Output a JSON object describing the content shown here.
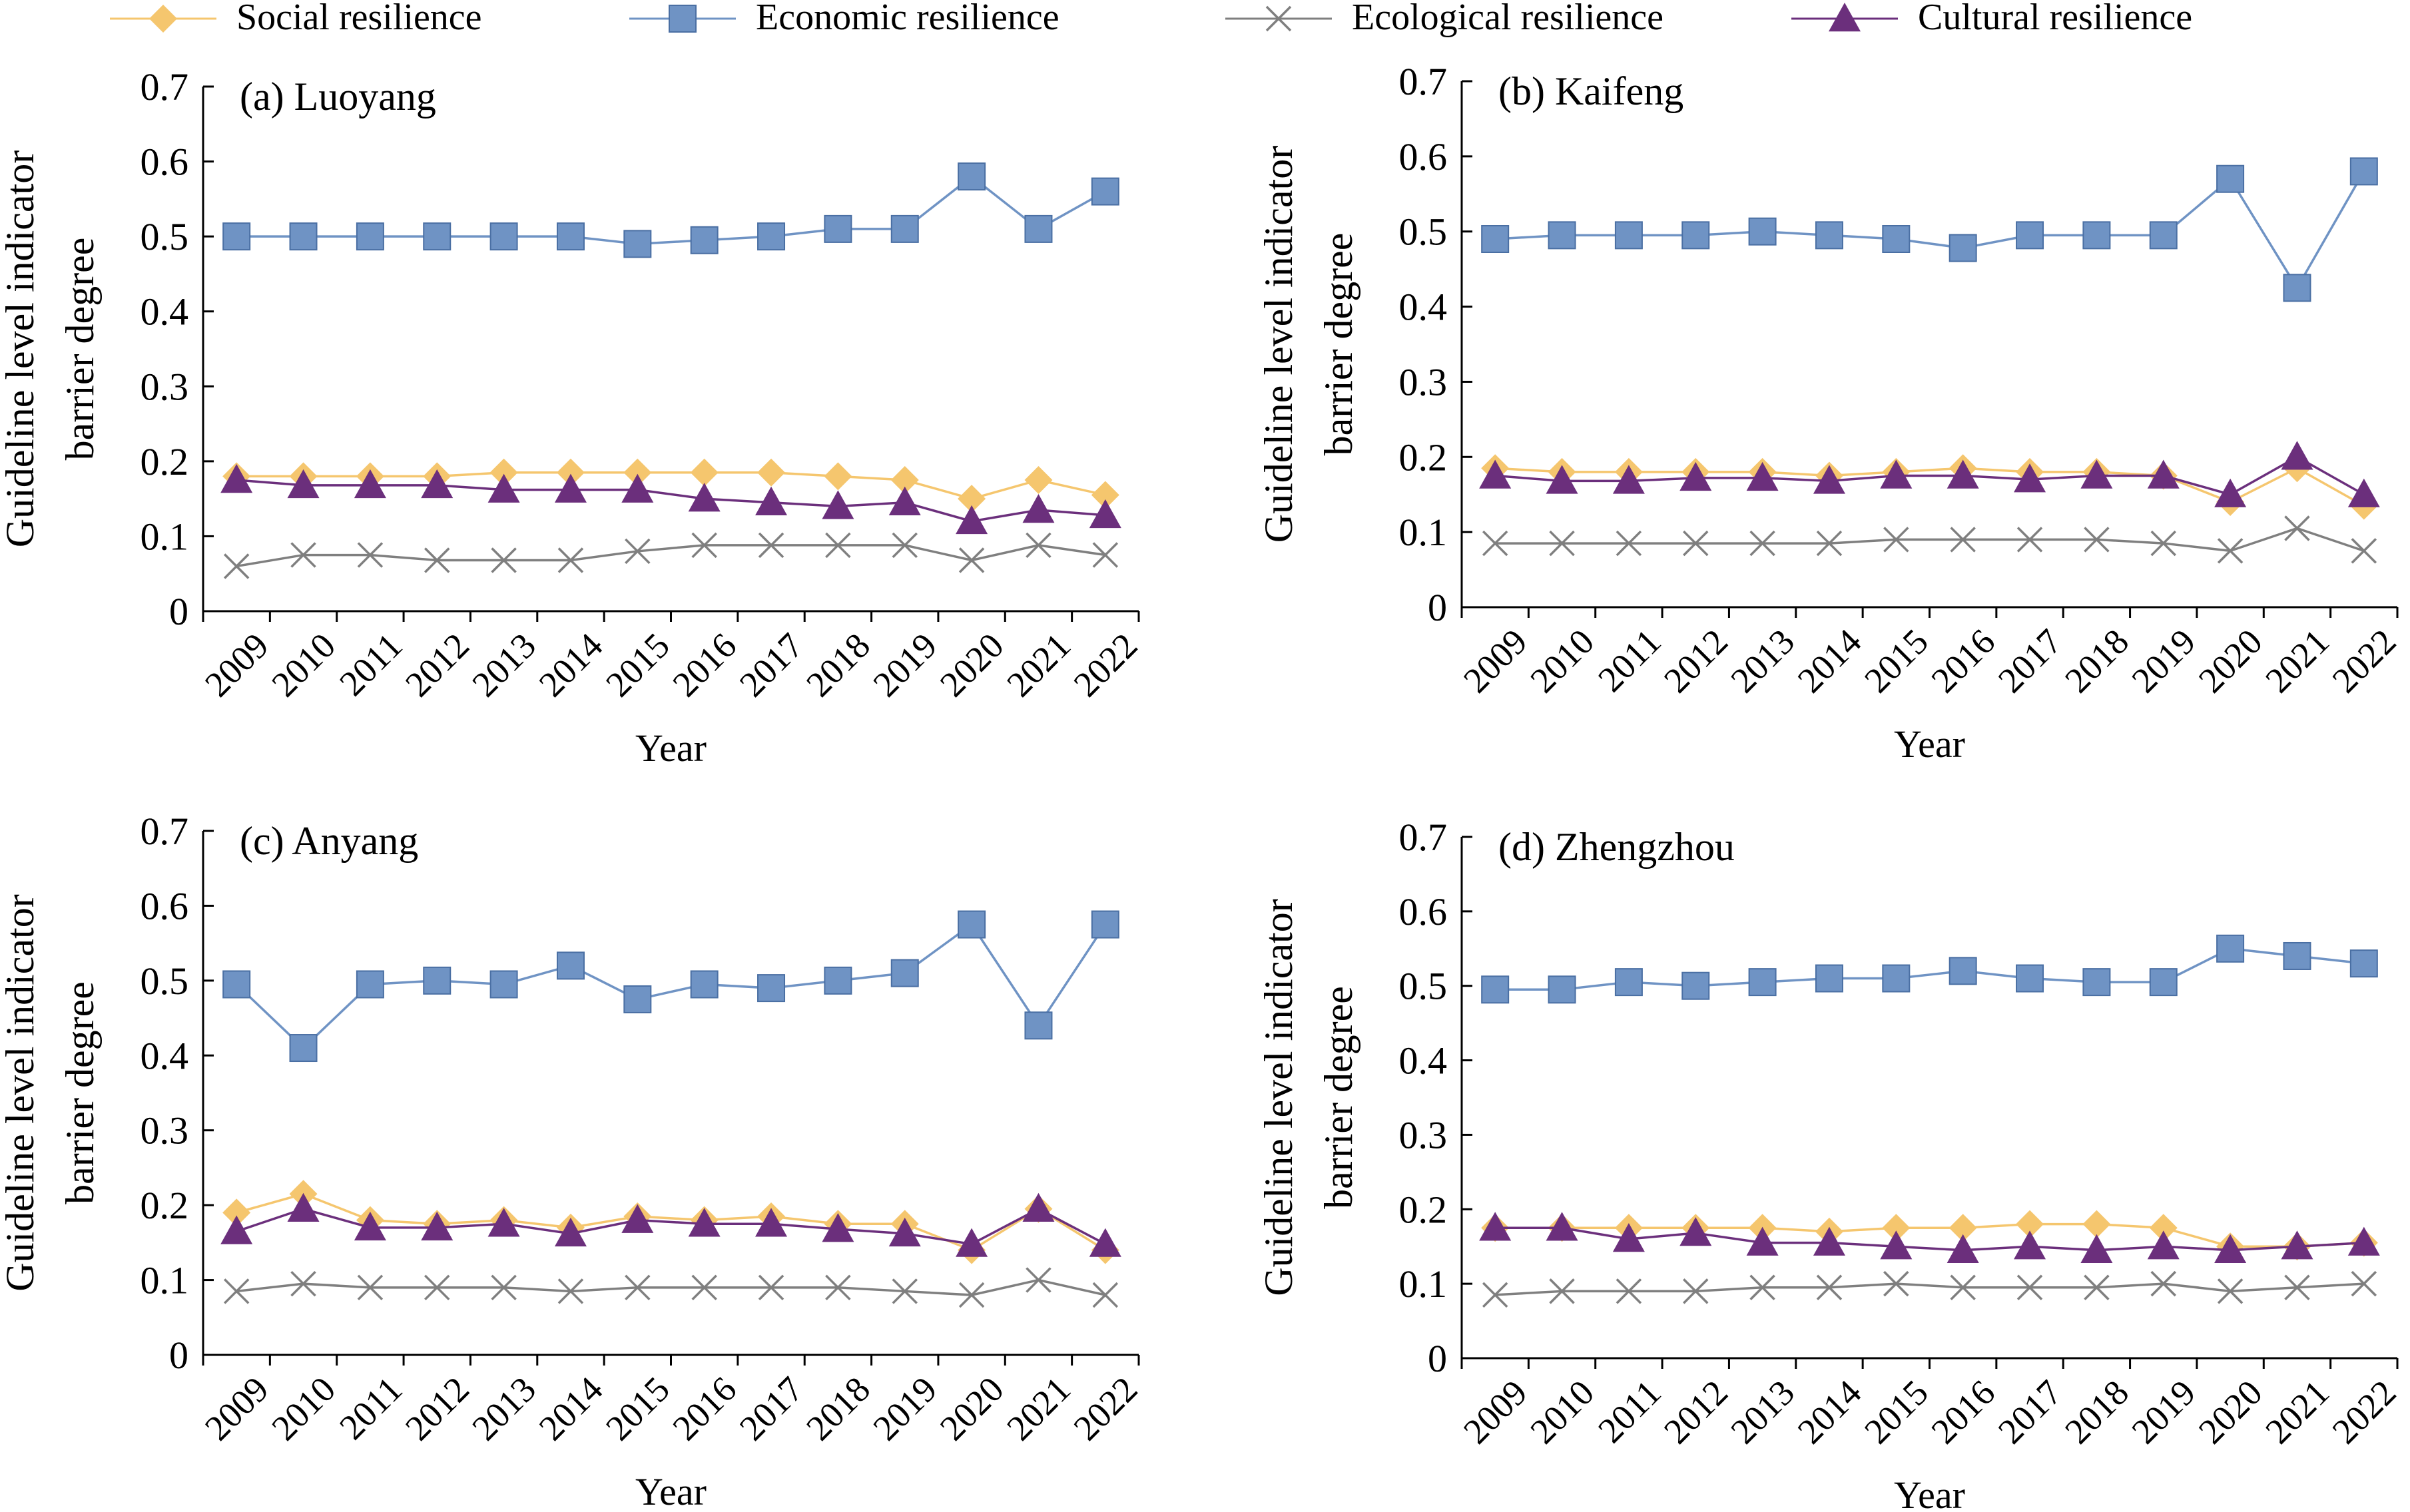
{
  "legend": {
    "items": [
      {
        "label": "Social resilience",
        "marker": "diamond",
        "color": "#F5C66E"
      },
      {
        "label": "Economic resilience",
        "marker": "square",
        "color": "#6F93C4"
      },
      {
        "label": "Ecological resilience",
        "marker": "x",
        "color": "#7F7F7F"
      },
      {
        "label": "Cultural resilience",
        "marker": "triangle",
        "color": "#6B2F7C"
      }
    ]
  },
  "colors": {
    "social": "#F5C66E",
    "economic": "#6F93C4",
    "ecological": "#7F7F7F",
    "cultural": "#6B2F7C",
    "axis": "#000000"
  },
  "chart_data": [
    {
      "type": "line",
      "panel_label": "(a) Luoyang",
      "xlabel": "Year",
      "ylabel_line1": "Guideline level indicator",
      "ylabel_line2": "barrier degree",
      "ylim": [
        0,
        0.7
      ],
      "yticks": [
        "0",
        "0.1",
        "0.2",
        "0.3",
        "0.4",
        "0.5",
        "0.6",
        "0.7"
      ],
      "categories": [
        "2009",
        "2010",
        "2011",
        "2012",
        "2013",
        "2014",
        "2015",
        "2016",
        "2017",
        "2018",
        "2019",
        "2020",
        "2021",
        "2022"
      ],
      "series": [
        {
          "name": "Social resilience",
          "values": [
            0.18,
            0.18,
            0.18,
            0.18,
            0.185,
            0.185,
            0.185,
            0.185,
            0.185,
            0.18,
            0.175,
            0.15,
            0.175,
            0.155
          ]
        },
        {
          "name": "Economic resilience",
          "values": [
            0.5,
            0.5,
            0.5,
            0.5,
            0.5,
            0.5,
            0.49,
            0.495,
            0.5,
            0.51,
            0.51,
            0.58,
            0.51,
            0.56
          ]
        },
        {
          "name": "Ecological resilience",
          "values": [
            0.06,
            0.075,
            0.075,
            0.068,
            0.068,
            0.068,
            0.08,
            0.088,
            0.088,
            0.088,
            0.088,
            0.068,
            0.088,
            0.075
          ]
        },
        {
          "name": "Cultural resilience",
          "values": [
            0.175,
            0.168,
            0.168,
            0.168,
            0.162,
            0.162,
            0.162,
            0.15,
            0.145,
            0.14,
            0.145,
            0.12,
            0.135,
            0.128
          ]
        }
      ]
    },
    {
      "type": "line",
      "panel_label": "(b) Kaifeng",
      "xlabel": "Year",
      "ylabel_line1": "Guideline level indicator",
      "ylabel_line2": "barrier degree",
      "ylim": [
        0,
        0.7
      ],
      "yticks": [
        "0",
        "0.1",
        "0.2",
        "0.3",
        "0.4",
        "0.5",
        "0.6",
        "0.7"
      ],
      "categories": [
        "2009",
        "2010",
        "2011",
        "2012",
        "2013",
        "2014",
        "2015",
        "2016",
        "2017",
        "2018",
        "2019",
        "2020",
        "2021",
        "2022"
      ],
      "series": [
        {
          "name": "Social resilience",
          "values": [
            0.185,
            0.18,
            0.18,
            0.18,
            0.18,
            0.175,
            0.18,
            0.185,
            0.18,
            0.18,
            0.175,
            0.14,
            0.185,
            0.135
          ]
        },
        {
          "name": "Economic resilience",
          "values": [
            0.49,
            0.495,
            0.495,
            0.495,
            0.5,
            0.495,
            0.49,
            0.478,
            0.495,
            0.495,
            0.495,
            0.57,
            0.425,
            0.58
          ]
        },
        {
          "name": "Ecological resilience",
          "values": [
            0.085,
            0.085,
            0.085,
            0.085,
            0.085,
            0.085,
            0.09,
            0.09,
            0.09,
            0.09,
            0.085,
            0.075,
            0.105,
            0.075
          ]
        },
        {
          "name": "Cultural resilience",
          "values": [
            0.175,
            0.168,
            0.168,
            0.172,
            0.172,
            0.168,
            0.175,
            0.175,
            0.17,
            0.175,
            0.175,
            0.15,
            0.2,
            0.15
          ]
        }
      ]
    },
    {
      "type": "line",
      "panel_label": "(c) Anyang",
      "xlabel": "Year",
      "ylabel_line1": "Guideline level indicator",
      "ylabel_line2": "barrier degree",
      "ylim": [
        0,
        0.7
      ],
      "yticks": [
        "0",
        "0.1",
        "0.2",
        "0.3",
        "0.4",
        "0.5",
        "0.6",
        "0.7"
      ],
      "categories": [
        "2009",
        "2010",
        "2011",
        "2012",
        "2013",
        "2014",
        "2015",
        "2016",
        "2017",
        "2018",
        "2019",
        "2020",
        "2021",
        "2022"
      ],
      "series": [
        {
          "name": "Social resilience",
          "values": [
            0.19,
            0.215,
            0.18,
            0.175,
            0.18,
            0.17,
            0.185,
            0.18,
            0.185,
            0.175,
            0.175,
            0.14,
            0.195,
            0.14
          ]
        },
        {
          "name": "Economic resilience",
          "values": [
            0.495,
            0.41,
            0.495,
            0.5,
            0.495,
            0.52,
            0.475,
            0.495,
            0.49,
            0.5,
            0.51,
            0.575,
            0.44,
            0.575
          ]
        },
        {
          "name": "Ecological resilience",
          "values": [
            0.085,
            0.095,
            0.09,
            0.09,
            0.09,
            0.085,
            0.09,
            0.09,
            0.09,
            0.09,
            0.085,
            0.08,
            0.1,
            0.08
          ]
        },
        {
          "name": "Cultural resilience",
          "values": [
            0.165,
            0.195,
            0.17,
            0.17,
            0.175,
            0.162,
            0.18,
            0.175,
            0.175,
            0.168,
            0.162,
            0.148,
            0.195,
            0.148
          ]
        }
      ]
    },
    {
      "type": "line",
      "panel_label": "(d) Zhengzhou",
      "xlabel": "Year",
      "ylabel_line1": "Guideline level indicator",
      "ylabel_line2": "barrier degree",
      "ylim": [
        0,
        0.7
      ],
      "yticks": [
        "0",
        "0.1",
        "0.2",
        "0.3",
        "0.4",
        "0.5",
        "0.6",
        "0.7"
      ],
      "categories": [
        "2009",
        "2010",
        "2011",
        "2012",
        "2013",
        "2014",
        "2015",
        "2016",
        "2017",
        "2018",
        "2019",
        "2020",
        "2021",
        "2022"
      ],
      "series": [
        {
          "name": "Social resilience",
          "values": [
            0.175,
            0.175,
            0.175,
            0.175,
            0.175,
            0.17,
            0.175,
            0.175,
            0.18,
            0.18,
            0.175,
            0.15,
            0.15,
            0.155
          ]
        },
        {
          "name": "Economic resilience",
          "values": [
            0.495,
            0.495,
            0.505,
            0.5,
            0.505,
            0.51,
            0.51,
            0.52,
            0.51,
            0.505,
            0.505,
            0.55,
            0.54,
            0.53
          ]
        },
        {
          "name": "Ecological resilience",
          "values": [
            0.085,
            0.09,
            0.09,
            0.09,
            0.095,
            0.095,
            0.1,
            0.095,
            0.095,
            0.095,
            0.1,
            0.09,
            0.095,
            0.1
          ]
        },
        {
          "name": "Cultural resilience",
          "values": [
            0.175,
            0.175,
            0.16,
            0.168,
            0.155,
            0.155,
            0.15,
            0.145,
            0.15,
            0.145,
            0.15,
            0.145,
            0.15,
            0.155
          ]
        }
      ]
    }
  ]
}
